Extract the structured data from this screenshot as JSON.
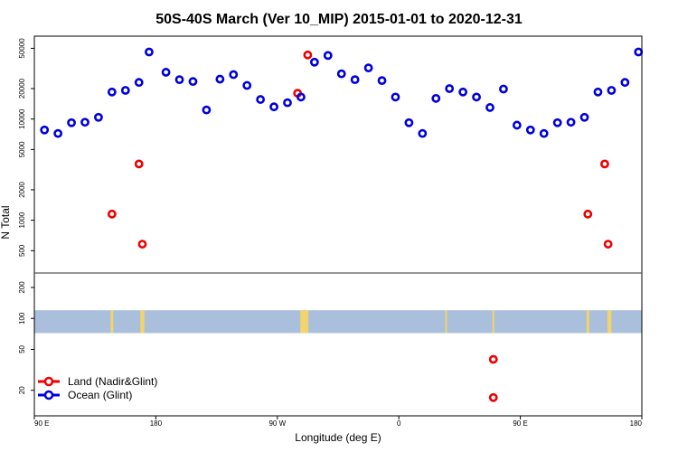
{
  "chart_data": {
    "type": "scatter",
    "title": "50S-40S March (Ver 10_MIP)   2015-01-01 to 2020-12-31",
    "xlabel": "Longitude (deg E)",
    "ylabel": "N Total",
    "x_ticks": [
      {
        "lon": 90,
        "label": "90 E"
      },
      {
        "lon": 180,
        "label": "180"
      },
      {
        "lon": 270,
        "label": "90 W"
      },
      {
        "lon": 360,
        "label": "0"
      },
      {
        "lon": 450,
        "label": "90 E"
      },
      {
        "lon": 540,
        "label": "180"
      }
    ],
    "xlim": [
      90,
      540
    ],
    "top_panel": {
      "yscale": "log",
      "ylim": [
        320,
        62000
      ],
      "y_ticks": [
        "500",
        "1000",
        "2000",
        "5000",
        "10000",
        "20000",
        "50000"
      ],
      "y_tick_values": [
        500,
        1000,
        2000,
        5000,
        10000,
        20000,
        50000
      ]
    },
    "bottom_panel": {
      "yscale": "log",
      "ylim": [
        12,
        260
      ],
      "y_ticks": [
        "20",
        "50",
        "100",
        "200"
      ],
      "y_tick_values": [
        20,
        50,
        100,
        200
      ],
      "band": [
        72,
        120
      ]
    },
    "series": [
      {
        "name": "Land (Nadir&Glint)",
        "color": "#ee0000",
        "points_top": [
          {
            "x": 147.5,
            "y": 1150
          },
          {
            "x": 167.5,
            "y": 3600
          },
          {
            "x": 170,
            "y": 580
          },
          {
            "x": 285,
            "y": 18000
          },
          {
            "x": 292.5,
            "y": 43000
          },
          {
            "x": 500,
            "y": 1150
          },
          {
            "x": 512.5,
            "y": 3600
          },
          {
            "x": 515,
            "y": 580
          }
        ],
        "points_bottom": [
          {
            "x": 430,
            "y": 40
          },
          {
            "x": 430,
            "y": 17
          }
        ]
      },
      {
        "name": "Ocean (Glint)",
        "color": "#0000dd",
        "points_top": [
          {
            "x": 97.5,
            "y": 7800
          },
          {
            "x": 107.5,
            "y": 7200
          },
          {
            "x": 117.5,
            "y": 9200
          },
          {
            "x": 127.5,
            "y": 9300
          },
          {
            "x": 137.5,
            "y": 10400
          },
          {
            "x": 147.5,
            "y": 18500
          },
          {
            "x": 157.5,
            "y": 19200
          },
          {
            "x": 167.5,
            "y": 23000
          },
          {
            "x": 175,
            "y": 46000
          },
          {
            "x": 187.5,
            "y": 29000
          },
          {
            "x": 197.5,
            "y": 24500
          },
          {
            "x": 207.5,
            "y": 23500
          },
          {
            "x": 217.5,
            "y": 12300
          },
          {
            "x": 227.5,
            "y": 24800
          },
          {
            "x": 237.5,
            "y": 27500
          },
          {
            "x": 247.5,
            "y": 21500
          },
          {
            "x": 257.5,
            "y": 15600
          },
          {
            "x": 267.5,
            "y": 13200
          },
          {
            "x": 277.5,
            "y": 14500
          },
          {
            "x": 287.5,
            "y": 16500
          },
          {
            "x": 297.5,
            "y": 36500
          },
          {
            "x": 307.5,
            "y": 42500
          },
          {
            "x": 317.5,
            "y": 28000
          },
          {
            "x": 327.5,
            "y": 24500
          },
          {
            "x": 337.5,
            "y": 32000
          },
          {
            "x": 347.5,
            "y": 24000
          },
          {
            "x": 357.5,
            "y": 16500
          },
          {
            "x": 367.5,
            "y": 9200
          },
          {
            "x": 377.5,
            "y": 7200
          },
          {
            "x": 387.5,
            "y": 16000
          },
          {
            "x": 397.5,
            "y": 20000
          },
          {
            "x": 407.5,
            "y": 18500
          },
          {
            "x": 417.5,
            "y": 16500
          },
          {
            "x": 427.5,
            "y": 13000
          },
          {
            "x": 437.5,
            "y": 19800
          },
          {
            "x": 447.5,
            "y": 8700
          },
          {
            "x": 457.5,
            "y": 7800
          },
          {
            "x": 467.5,
            "y": 7200
          },
          {
            "x": 477.5,
            "y": 9200
          },
          {
            "x": 487.5,
            "y": 9300
          },
          {
            "x": 497.5,
            "y": 10400
          },
          {
            "x": 507.5,
            "y": 18500
          },
          {
            "x": 517.5,
            "y": 19200
          },
          {
            "x": 527.5,
            "y": 23000
          },
          {
            "x": 537.5,
            "y": 46000
          }
        ]
      }
    ],
    "legend": {
      "placement": "bottom-left",
      "entries": [
        "Land (Nadir&Glint)",
        "Ocean (Glint)"
      ]
    },
    "land_strips": [
      {
        "lon": 147.5,
        "width_deg": 2
      },
      {
        "lon": 170,
        "width_deg": 3
      },
      {
        "lon": 290,
        "width_deg": 6
      },
      {
        "lon": 395,
        "width_deg": 1
      },
      {
        "lon": 430,
        "width_deg": 1
      },
      {
        "lon": 500,
        "width_deg": 2
      },
      {
        "lon": 516,
        "width_deg": 3
      }
    ],
    "colors": {
      "band": "#a9bfdc",
      "land": "#f3d36b",
      "axis": "#000000",
      "divider": "#555555"
    }
  }
}
